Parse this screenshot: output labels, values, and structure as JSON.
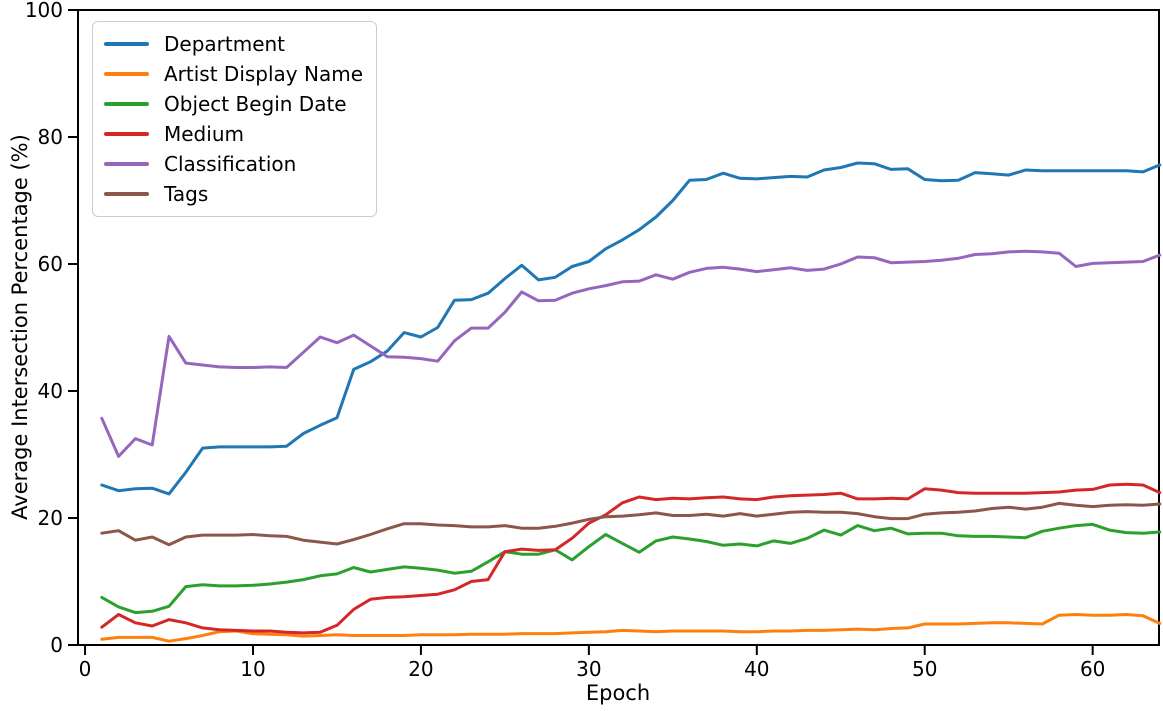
{
  "figure": {
    "background": "#ffffff",
    "text_color": "#000000",
    "spine_color": "#000000",
    "legend_border_color": "#cccccc"
  },
  "chart_data": {
    "type": "line",
    "title": "",
    "xlabel": "Epoch",
    "ylabel": "Average Intersection Percentage (%)",
    "grid": false,
    "legend_position": "upper-left",
    "xlim": [
      -0.42,
      63.95
    ],
    "ylim": [
      0,
      100
    ],
    "xticks": [
      0,
      10,
      20,
      30,
      40,
      50,
      60
    ],
    "yticks": [
      0,
      20,
      40,
      60,
      80,
      100
    ],
    "x": [
      1,
      2,
      3,
      4,
      5,
      6,
      7,
      8,
      9,
      10,
      11,
      12,
      13,
      14,
      15,
      16,
      17,
      18,
      19,
      20,
      21,
      22,
      23,
      24,
      25,
      26,
      27,
      28,
      29,
      30,
      31,
      32,
      33,
      34,
      35,
      36,
      37,
      38,
      39,
      40,
      41,
      42,
      43,
      44,
      45,
      46,
      47,
      48,
      49,
      50,
      51,
      52,
      53,
      54,
      55,
      56,
      57,
      58,
      59,
      60,
      61,
      62,
      63,
      64
    ],
    "series": [
      {
        "name": "Department",
        "color": "#1f77b4",
        "values": [
          25.2,
          24.3,
          24.6,
          24.7,
          23.8,
          27.2,
          31.0,
          31.2,
          31.2,
          31.2,
          31.2,
          31.3,
          33.3,
          34.6,
          35.8,
          43.4,
          44.6,
          46.3,
          49.2,
          48.5,
          50.0,
          54.3,
          54.4,
          55.4,
          57.7,
          59.8,
          57.5,
          57.9,
          59.6,
          60.4,
          62.4,
          63.8,
          65.4,
          67.4,
          70.0,
          73.2,
          73.3,
          74.3,
          73.5,
          73.4,
          73.6,
          73.8,
          73.7,
          74.8,
          75.2,
          75.9,
          75.8,
          74.9,
          75.0,
          73.3,
          73.1,
          73.2,
          74.4,
          74.2,
          74.0,
          74.8,
          74.7,
          74.7,
          74.7,
          74.7,
          74.7,
          74.7,
          74.5,
          75.6
        ]
      },
      {
        "name": "Artist Display Name",
        "color": "#ff7f0e",
        "values": [
          0.9,
          1.2,
          1.2,
          1.2,
          0.6,
          1.0,
          1.5,
          2.1,
          2.2,
          1.8,
          1.7,
          1.6,
          1.4,
          1.5,
          1.6,
          1.5,
          1.5,
          1.5,
          1.5,
          1.6,
          1.6,
          1.6,
          1.7,
          1.7,
          1.7,
          1.8,
          1.8,
          1.8,
          1.9,
          2.0,
          2.1,
          2.3,
          2.2,
          2.1,
          2.2,
          2.2,
          2.2,
          2.2,
          2.1,
          2.1,
          2.2,
          2.2,
          2.3,
          2.3,
          2.4,
          2.5,
          2.4,
          2.6,
          2.7,
          3.3,
          3.3,
          3.3,
          3.4,
          3.5,
          3.5,
          3.4,
          3.3,
          4.7,
          4.8,
          4.7,
          4.7,
          4.8,
          4.6,
          3.4
        ]
      },
      {
        "name": "Object Begin Date",
        "color": "#2ca02c",
        "values": [
          7.5,
          6.0,
          5.1,
          5.3,
          6.1,
          9.2,
          9.5,
          9.3,
          9.3,
          9.4,
          9.6,
          9.9,
          10.3,
          10.9,
          11.2,
          12.2,
          11.5,
          11.9,
          12.3,
          12.1,
          11.8,
          11.3,
          11.6,
          13.1,
          14.7,
          14.3,
          14.3,
          15.0,
          13.4,
          15.5,
          17.4,
          16.0,
          14.6,
          16.4,
          17.0,
          16.7,
          16.3,
          15.7,
          15.9,
          15.6,
          16.4,
          16.0,
          16.8,
          18.1,
          17.3,
          18.8,
          18.0,
          18.4,
          17.5,
          17.6,
          17.6,
          17.2,
          17.1,
          17.1,
          17.0,
          16.9,
          17.9,
          18.4,
          18.8,
          19.0,
          18.1,
          17.7,
          17.6,
          17.8
        ]
      },
      {
        "name": "Medium",
        "color": "#d62728",
        "values": [
          2.8,
          4.8,
          3.5,
          3.0,
          4.0,
          3.5,
          2.7,
          2.4,
          2.3,
          2.2,
          2.2,
          2.0,
          1.9,
          2.0,
          3.1,
          5.6,
          7.2,
          7.5,
          7.6,
          7.8,
          8.0,
          8.7,
          10.0,
          10.3,
          14.7,
          15.1,
          14.9,
          15.0,
          16.8,
          19.2,
          20.5,
          22.4,
          23.3,
          22.9,
          23.1,
          23.0,
          23.2,
          23.3,
          23.0,
          22.9,
          23.3,
          23.5,
          23.6,
          23.7,
          23.9,
          23.0,
          23.0,
          23.1,
          23.0,
          24.6,
          24.4,
          24.0,
          23.9,
          23.9,
          23.9,
          23.9,
          24.0,
          24.1,
          24.4,
          24.5,
          25.2,
          25.3,
          25.2,
          24.0
        ]
      },
      {
        "name": "Classification",
        "color": "#9467bd",
        "values": [
          35.7,
          29.7,
          32.5,
          31.5,
          48.6,
          44.4,
          44.1,
          43.8,
          43.7,
          43.7,
          43.8,
          43.7,
          46.1,
          48.5,
          47.6,
          48.8,
          47.1,
          45.4,
          45.3,
          45.1,
          44.7,
          47.9,
          49.9,
          49.9,
          52.4,
          55.6,
          54.2,
          54.3,
          55.4,
          56.1,
          56.6,
          57.2,
          57.3,
          58.3,
          57.6,
          58.7,
          59.3,
          59.5,
          59.2,
          58.8,
          59.1,
          59.4,
          59.0,
          59.2,
          60.0,
          61.1,
          61.0,
          60.2,
          60.3,
          60.4,
          60.6,
          60.9,
          61.5,
          61.6,
          61.9,
          62.0,
          61.9,
          61.7,
          59.6,
          60.1,
          60.2,
          60.3,
          60.4,
          61.4
        ]
      },
      {
        "name": "Tags",
        "color": "#8c564b",
        "values": [
          17.6,
          18.0,
          16.5,
          17.0,
          15.8,
          17.0,
          17.3,
          17.3,
          17.3,
          17.4,
          17.2,
          17.1,
          16.5,
          16.2,
          15.9,
          16.6,
          17.4,
          18.3,
          19.1,
          19.1,
          18.9,
          18.8,
          18.6,
          18.6,
          18.8,
          18.4,
          18.4,
          18.7,
          19.2,
          19.8,
          20.2,
          20.3,
          20.5,
          20.8,
          20.4,
          20.4,
          20.6,
          20.3,
          20.7,
          20.3,
          20.6,
          20.9,
          21.0,
          20.9,
          20.9,
          20.7,
          20.2,
          19.9,
          19.9,
          20.6,
          20.8,
          20.9,
          21.1,
          21.5,
          21.7,
          21.4,
          21.7,
          22.3,
          22.0,
          21.8,
          22.0,
          22.1,
          22.0,
          22.2
        ]
      }
    ]
  }
}
